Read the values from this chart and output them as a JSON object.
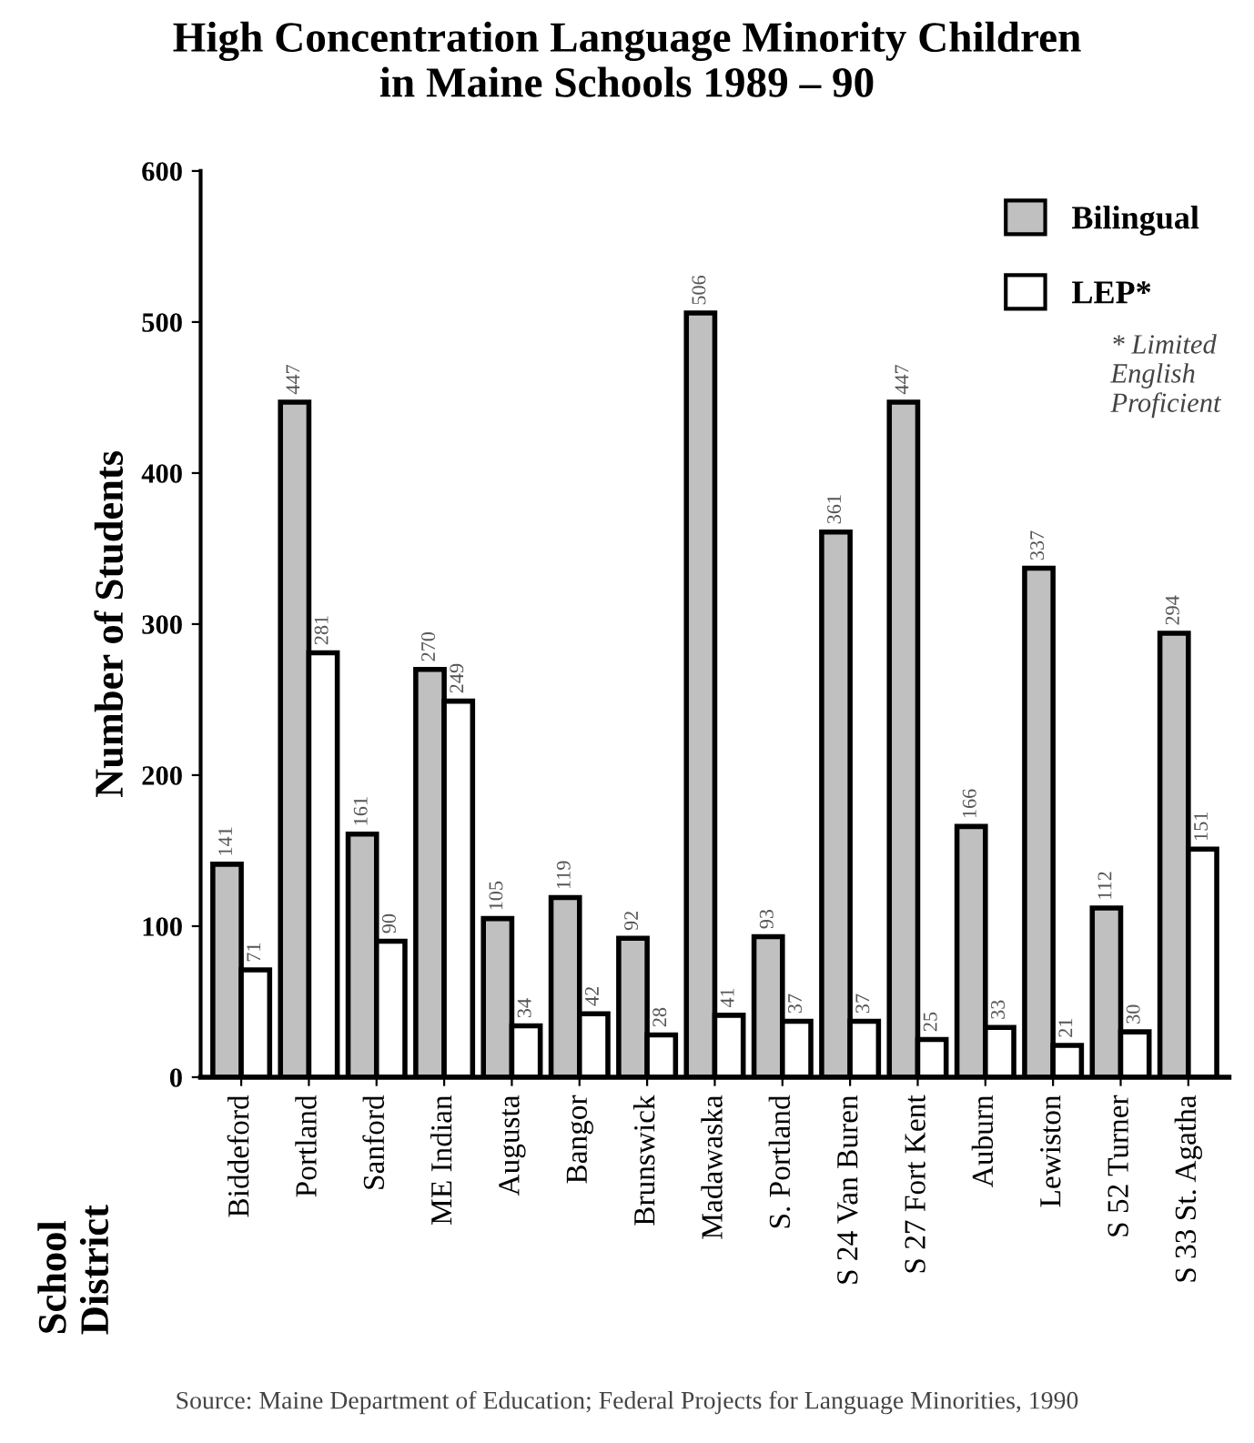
{
  "chart_data": {
    "type": "bar",
    "title": "High Concentration Language Minority Children\nin Maine Schools 1989 – 90",
    "ylabel": "Number of Students",
    "categories": [
      "Biddeford",
      "Portland",
      "Sanford",
      "ME Indian",
      "Augusta",
      "Bangor",
      "Brunswick",
      "Madawaska",
      "S. Portland",
      "S 24 Van Buren",
      "S 27 Fort Kent",
      "Auburn",
      "Lewiston",
      "S 52 Turner",
      "S 33 St. Agatha"
    ],
    "series": [
      {
        "name": "Bilingual",
        "color": "#c0c0c0",
        "values": [
          141,
          447,
          161,
          270,
          105,
          119,
          92,
          506,
          93,
          361,
          447,
          166,
          337,
          112,
          294
        ]
      },
      {
        "name": "LEP*",
        "color": "#ffffff",
        "values": [
          71,
          281,
          90,
          249,
          34,
          42,
          28,
          41,
          37,
          37,
          25,
          33,
          21,
          30,
          151
        ]
      }
    ],
    "ylim": [
      0,
      600
    ],
    "yticks": [
      0,
      100,
      200,
      300,
      400,
      500,
      600
    ],
    "grid": false,
    "legend": "top right",
    "data_labels": true,
    "annotations": [
      "School\nDistrict",
      "* Limited\nEnglish\nProficient",
      "Source: Maine Department of Education; Federal Projects for Language Minorities, 1990"
    ]
  }
}
